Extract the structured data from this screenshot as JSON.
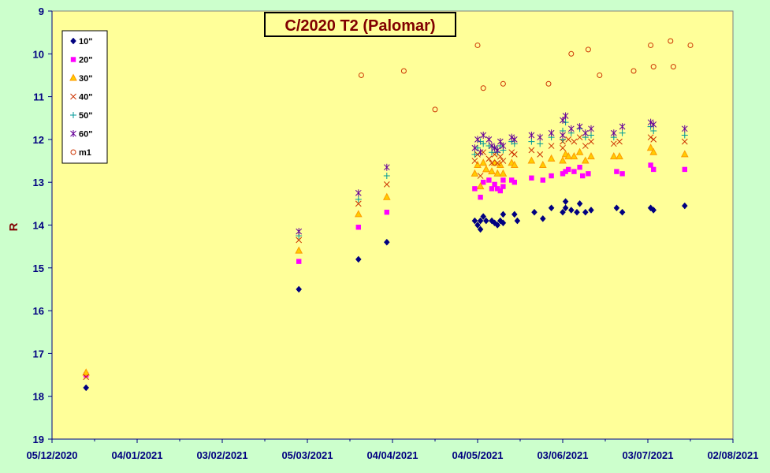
{
  "chart_data": {
    "type": "scatter",
    "title": "C/2020 T2 (Palomar)",
    "xlabel": "",
    "ylabel": "R",
    "x_ticks": [
      "05/12/2020",
      "04/01/2021",
      "03/02/2021",
      "05/03/2021",
      "04/04/2021",
      "04/05/2021",
      "03/06/2021",
      "03/07/2021",
      "02/08/2021"
    ],
    "y_ticks": [
      9,
      10,
      11,
      12,
      13,
      14,
      15,
      16,
      17,
      18,
      19
    ],
    "xlim": [
      "2020-12-05",
      "2021-08-02"
    ],
    "ylim": [
      19,
      9
    ],
    "y_inverted": true,
    "grid": false,
    "legend_position": "top-left",
    "colors": {
      "plot_bg": "#ffff99",
      "page_bg": "#ccffcc",
      "axis": "#000080",
      "title": "#800000",
      "ylabel": "#800000"
    },
    "series": [
      {
        "name": "10\"",
        "marker": "diamond",
        "color": "#000080",
        "points": [
          [
            "2020-12-17",
            17.8
          ],
          [
            "2021-03-02",
            15.5
          ],
          [
            "2021-03-23",
            14.8
          ],
          [
            "2021-04-02",
            14.4
          ],
          [
            "2021-05-03",
            13.9
          ],
          [
            "2021-05-04",
            14.0
          ],
          [
            "2021-05-05",
            13.9
          ],
          [
            "2021-05-05",
            14.1
          ],
          [
            "2021-05-06",
            13.8
          ],
          [
            "2021-05-07",
            13.9
          ],
          [
            "2021-05-09",
            13.9
          ],
          [
            "2021-05-10",
            13.95
          ],
          [
            "2021-05-11",
            14.0
          ],
          [
            "2021-05-12",
            13.9
          ],
          [
            "2021-05-13",
            13.95
          ],
          [
            "2021-05-13",
            13.75
          ],
          [
            "2021-05-17",
            13.75
          ],
          [
            "2021-05-18",
            13.9
          ],
          [
            "2021-05-24",
            13.7
          ],
          [
            "2021-05-27",
            13.85
          ],
          [
            "2021-05-30",
            13.6
          ],
          [
            "2021-06-03",
            13.7
          ],
          [
            "2021-06-04",
            13.6
          ],
          [
            "2021-06-04",
            13.45
          ],
          [
            "2021-06-06",
            13.65
          ],
          [
            "2021-06-08",
            13.7
          ],
          [
            "2021-06-09",
            13.5
          ],
          [
            "2021-06-11",
            13.7
          ],
          [
            "2021-06-13",
            13.65
          ],
          [
            "2021-06-22",
            13.6
          ],
          [
            "2021-06-24",
            13.7
          ],
          [
            "2021-07-04",
            13.6
          ],
          [
            "2021-07-05",
            13.65
          ],
          [
            "2021-07-16",
            13.55
          ]
        ]
      },
      {
        "name": "20\"",
        "marker": "square",
        "color": "#ff00ff",
        "points": [
          [
            "2020-12-17",
            17.5
          ],
          [
            "2021-03-02",
            14.85
          ],
          [
            "2021-03-23",
            14.05
          ],
          [
            "2021-04-02",
            13.7
          ],
          [
            "2021-05-03",
            13.15
          ],
          [
            "2021-05-05",
            13.35
          ],
          [
            "2021-05-06",
            13.0
          ],
          [
            "2021-05-08",
            12.95
          ],
          [
            "2021-05-09",
            13.15
          ],
          [
            "2021-05-10",
            13.05
          ],
          [
            "2021-05-11",
            13.15
          ],
          [
            "2021-05-12",
            13.2
          ],
          [
            "2021-05-13",
            13.1
          ],
          [
            "2021-05-13",
            12.95
          ],
          [
            "2021-05-16",
            12.95
          ],
          [
            "2021-05-17",
            13.0
          ],
          [
            "2021-05-23",
            12.9
          ],
          [
            "2021-05-27",
            12.95
          ],
          [
            "2021-05-30",
            12.85
          ],
          [
            "2021-06-03",
            12.8
          ],
          [
            "2021-06-04",
            12.75
          ],
          [
            "2021-06-05",
            12.7
          ],
          [
            "2021-06-07",
            12.75
          ],
          [
            "2021-06-09",
            12.65
          ],
          [
            "2021-06-10",
            12.85
          ],
          [
            "2021-06-12",
            12.8
          ],
          [
            "2021-06-22",
            12.75
          ],
          [
            "2021-06-24",
            12.8
          ],
          [
            "2021-07-04",
            12.6
          ],
          [
            "2021-07-05",
            12.7
          ],
          [
            "2021-07-16",
            12.7
          ]
        ]
      },
      {
        "name": "30\"",
        "marker": "triangle",
        "color": "#ff9900",
        "points": [
          [
            "2020-12-17",
            17.45
          ],
          [
            "2021-03-02",
            14.6
          ],
          [
            "2021-03-23",
            13.75
          ],
          [
            "2021-04-02",
            13.35
          ],
          [
            "2021-05-03",
            12.8
          ],
          [
            "2021-05-04",
            12.6
          ],
          [
            "2021-05-05",
            13.1
          ],
          [
            "2021-05-06",
            12.55
          ],
          [
            "2021-05-07",
            12.7
          ],
          [
            "2021-05-09",
            12.75
          ],
          [
            "2021-05-10",
            12.55
          ],
          [
            "2021-05-11",
            12.8
          ],
          [
            "2021-05-12",
            12.6
          ],
          [
            "2021-05-13",
            12.8
          ],
          [
            "2021-05-16",
            12.55
          ],
          [
            "2021-05-17",
            12.6
          ],
          [
            "2021-05-23",
            12.5
          ],
          [
            "2021-05-27",
            12.6
          ],
          [
            "2021-05-30",
            12.45
          ],
          [
            "2021-06-03",
            12.5
          ],
          [
            "2021-06-04",
            12.35
          ],
          [
            "2021-06-05",
            12.4
          ],
          [
            "2021-06-07",
            12.4
          ],
          [
            "2021-06-09",
            12.3
          ],
          [
            "2021-06-11",
            12.5
          ],
          [
            "2021-06-13",
            12.4
          ],
          [
            "2021-06-21",
            12.4
          ],
          [
            "2021-06-23",
            12.4
          ],
          [
            "2021-07-04",
            12.2
          ],
          [
            "2021-07-05",
            12.3
          ],
          [
            "2021-07-16",
            12.35
          ]
        ]
      },
      {
        "name": "40\"",
        "marker": "x",
        "color": "#cc3300",
        "points": [
          [
            "2020-12-17",
            17.55
          ],
          [
            "2021-03-02",
            14.35
          ],
          [
            "2021-03-23",
            13.5
          ],
          [
            "2021-04-02",
            13.05
          ],
          [
            "2021-05-03",
            12.5
          ],
          [
            "2021-05-04",
            12.35
          ],
          [
            "2021-05-05",
            12.85
          ],
          [
            "2021-05-06",
            12.3
          ],
          [
            "2021-05-08",
            12.45
          ],
          [
            "2021-05-09",
            12.55
          ],
          [
            "2021-05-10",
            12.35
          ],
          [
            "2021-05-11",
            12.55
          ],
          [
            "2021-05-12",
            12.4
          ],
          [
            "2021-05-13",
            12.5
          ],
          [
            "2021-05-16",
            12.3
          ],
          [
            "2021-05-17",
            12.35
          ],
          [
            "2021-05-23",
            12.25
          ],
          [
            "2021-05-26",
            12.35
          ],
          [
            "2021-05-30",
            12.15
          ],
          [
            "2021-06-03",
            12.2
          ],
          [
            "2021-06-03",
            12.05
          ],
          [
            "2021-06-05",
            12.0
          ],
          [
            "2021-06-07",
            12.05
          ],
          [
            "2021-06-09",
            11.95
          ],
          [
            "2021-06-11",
            12.15
          ],
          [
            "2021-06-13",
            12.05
          ],
          [
            "2021-06-21",
            12.1
          ],
          [
            "2021-06-23",
            12.05
          ],
          [
            "2021-07-04",
            11.95
          ],
          [
            "2021-07-05",
            12.0
          ],
          [
            "2021-07-16",
            12.05
          ]
        ]
      },
      {
        "name": "50\"",
        "marker": "plus",
        "color": "#009999",
        "points": [
          [
            "2021-03-02",
            14.25
          ],
          [
            "2021-03-23",
            13.4
          ],
          [
            "2021-04-02",
            12.85
          ],
          [
            "2021-05-03",
            12.35
          ],
          [
            "2021-05-04",
            12.2
          ],
          [
            "2021-05-05",
            12.05
          ],
          [
            "2021-05-06",
            12.1
          ],
          [
            "2021-05-08",
            12.15
          ],
          [
            "2021-05-09",
            12.3
          ],
          [
            "2021-05-10",
            12.2
          ],
          [
            "2021-05-11",
            12.3
          ],
          [
            "2021-05-12",
            12.15
          ],
          [
            "2021-05-13",
            12.25
          ],
          [
            "2021-05-16",
            12.05
          ],
          [
            "2021-05-17",
            12.1
          ],
          [
            "2021-05-23",
            12.05
          ],
          [
            "2021-05-26",
            12.1
          ],
          [
            "2021-05-30",
            11.95
          ],
          [
            "2021-06-03",
            12.0
          ],
          [
            "2021-06-03",
            11.8
          ],
          [
            "2021-06-04",
            11.6
          ],
          [
            "2021-06-06",
            11.85
          ],
          [
            "2021-06-09",
            11.75
          ],
          [
            "2021-06-11",
            11.95
          ],
          [
            "2021-06-13",
            11.9
          ],
          [
            "2021-06-21",
            11.95
          ],
          [
            "2021-06-24",
            11.85
          ],
          [
            "2021-07-04",
            11.7
          ],
          [
            "2021-07-05",
            11.8
          ],
          [
            "2021-07-16",
            11.9
          ]
        ]
      },
      {
        "name": "60\"",
        "marker": "star",
        "color": "#660099",
        "points": [
          [
            "2021-03-02",
            14.15
          ],
          [
            "2021-03-23",
            13.25
          ],
          [
            "2021-04-02",
            12.65
          ],
          [
            "2021-05-03",
            12.2
          ],
          [
            "2021-05-04",
            12.0
          ],
          [
            "2021-05-05",
            12.3
          ],
          [
            "2021-05-06",
            11.9
          ],
          [
            "2021-05-08",
            12.0
          ],
          [
            "2021-05-09",
            12.15
          ],
          [
            "2021-05-10",
            12.2
          ],
          [
            "2021-05-11",
            12.25
          ],
          [
            "2021-05-12",
            12.05
          ],
          [
            "2021-05-13",
            12.15
          ],
          [
            "2021-05-16",
            11.95
          ],
          [
            "2021-05-17",
            12.0
          ],
          [
            "2021-05-23",
            11.9
          ],
          [
            "2021-05-26",
            11.95
          ],
          [
            "2021-05-30",
            11.85
          ],
          [
            "2021-06-03",
            11.9
          ],
          [
            "2021-06-03",
            11.55
          ],
          [
            "2021-06-04",
            11.45
          ],
          [
            "2021-06-06",
            11.75
          ],
          [
            "2021-06-09",
            11.7
          ],
          [
            "2021-06-11",
            11.85
          ],
          [
            "2021-06-13",
            11.75
          ],
          [
            "2021-06-21",
            11.85
          ],
          [
            "2021-06-24",
            11.7
          ],
          [
            "2021-07-04",
            11.6
          ],
          [
            "2021-07-05",
            11.65
          ],
          [
            "2021-07-16",
            11.75
          ]
        ]
      },
      {
        "name": "m1",
        "marker": "circle",
        "color": "#cc3300",
        "points": [
          [
            "2021-03-24",
            10.5
          ],
          [
            "2021-04-08",
            10.4
          ],
          [
            "2021-04-19",
            11.3
          ],
          [
            "2021-05-04",
            9.8
          ],
          [
            "2021-05-06",
            10.8
          ],
          [
            "2021-05-13",
            10.7
          ],
          [
            "2021-05-29",
            10.7
          ],
          [
            "2021-06-06",
            10.0
          ],
          [
            "2021-06-12",
            9.9
          ],
          [
            "2021-06-16",
            10.5
          ],
          [
            "2021-06-28",
            10.4
          ],
          [
            "2021-07-04",
            9.8
          ],
          [
            "2021-07-05",
            10.3
          ],
          [
            "2021-07-11",
            9.7
          ],
          [
            "2021-07-12",
            10.3
          ],
          [
            "2021-07-18",
            9.8
          ]
        ]
      }
    ]
  }
}
